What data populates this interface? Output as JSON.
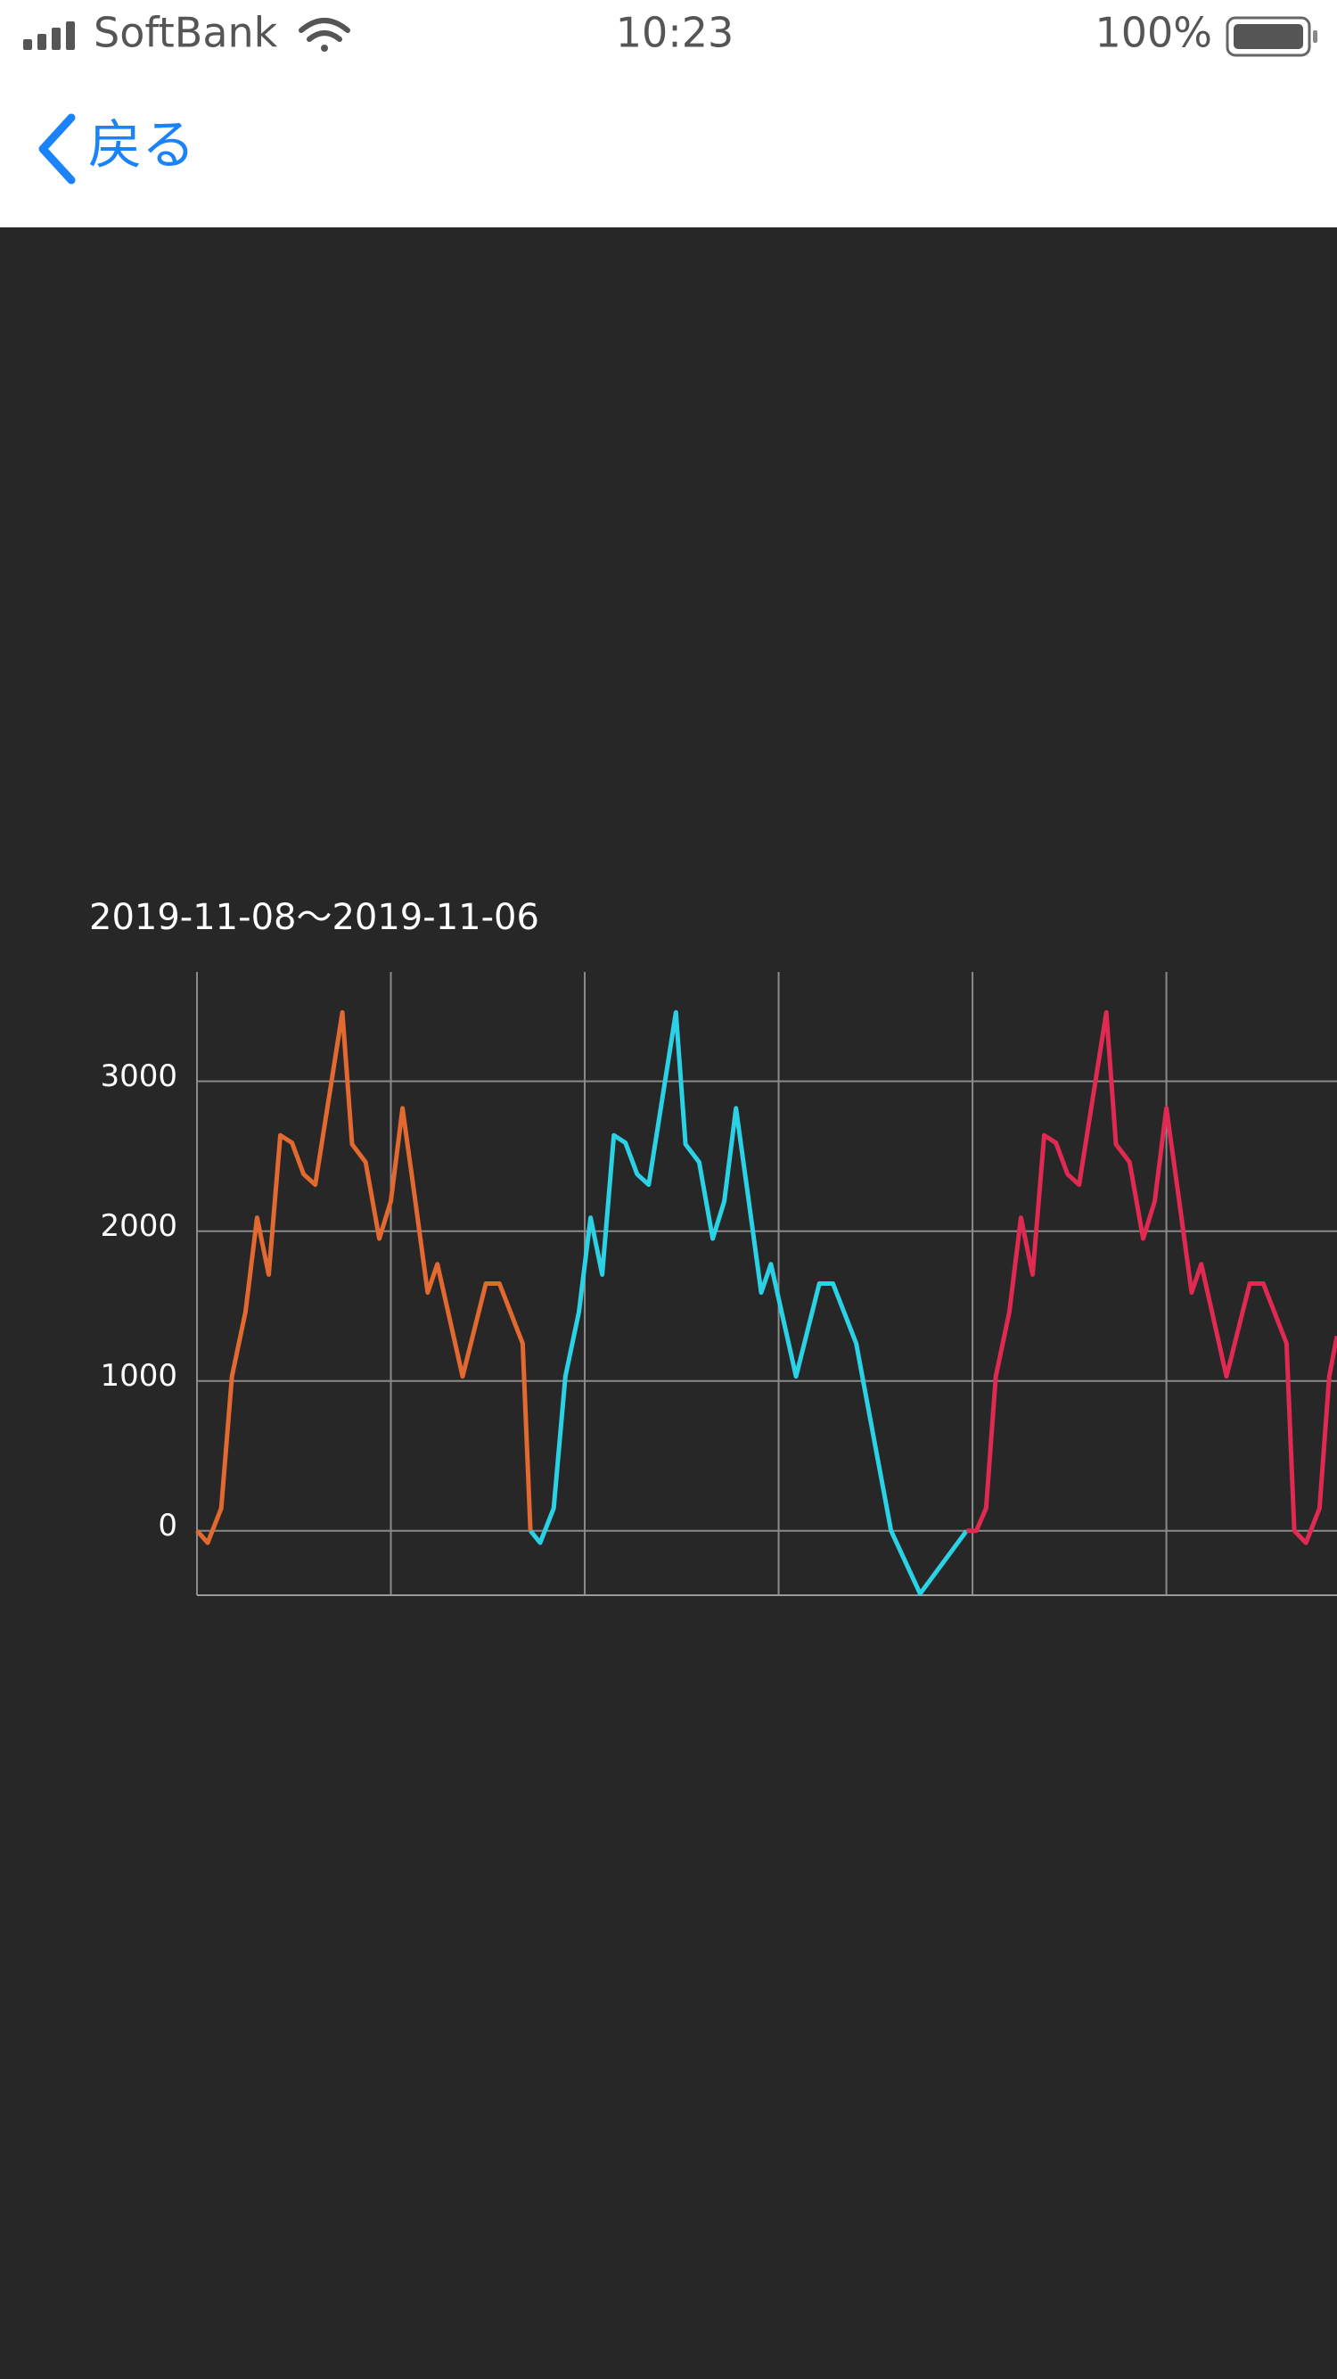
{
  "status_bar": {
    "carrier": "SoftBank",
    "time": "10:23",
    "battery": "100%"
  },
  "nav": {
    "back": "戻る"
  },
  "chart_data": {
    "type": "line",
    "title": "2019-11-08〜2019-11-06",
    "xlim": [
      0,
      5.88
    ],
    "xticks": [
      0,
      1,
      2,
      3,
      4,
      5
    ],
    "ylim": [
      -430,
      3730
    ],
    "yticks": [
      0,
      1000,
      2000,
      3000
    ],
    "grid": true,
    "series": [
      {
        "color": "#e2692f",
        "x": [
          0,
          0.055,
          0.125,
          0.18,
          0.25,
          0.31,
          0.37,
          0.43,
          0.49,
          0.55,
          0.61,
          0.75,
          0.8,
          0.87,
          0.94,
          1.0,
          1.06,
          1.12,
          1.19,
          1.24,
          1.37,
          1.49,
          1.56,
          1.68,
          1.72
        ],
        "values": [
          0,
          -80,
          150,
          1030,
          1460,
          2090,
          1710,
          2640,
          2590,
          2380,
          2310,
          3460,
          2580,
          2460,
          1950,
          2200,
          2820,
          2260,
          1590,
          1780,
          1030,
          1650,
          1650,
          1250,
          0
        ]
      },
      {
        "color": "#2bd2e6",
        "x": [
          1.72,
          1.77,
          1.84,
          1.9,
          1.97,
          2.03,
          2.09,
          2.15,
          2.21,
          2.27,
          2.33,
          2.47,
          2.52,
          2.59,
          2.66,
          2.72,
          2.78,
          2.84,
          2.91,
          2.96,
          3.09,
          3.21,
          3.28,
          3.4,
          3.58,
          3.73,
          3.97
        ],
        "values": [
          0,
          -80,
          150,
          1030,
          1460,
          2090,
          1710,
          2640,
          2590,
          2380,
          2310,
          3460,
          2580,
          2460,
          1950,
          2200,
          2820,
          2260,
          1590,
          1780,
          1030,
          1650,
          1650,
          1250,
          0,
          -420,
          0
        ]
      },
      {
        "color": "#e02a52",
        "x": [
          3.97,
          4.02,
          4.07,
          4.12,
          4.19,
          4.25,
          4.31,
          4.37,
          4.43,
          4.49,
          4.55,
          4.69,
          4.74,
          4.81,
          4.88,
          4.94,
          5.0,
          5.06,
          5.13,
          5.18,
          5.31,
          5.43,
          5.5,
          5.62,
          5.66,
          5.72,
          5.79,
          5.84,
          5.88
        ],
        "values": [
          0,
          0,
          150,
          1030,
          1460,
          2090,
          1710,
          2640,
          2590,
          2380,
          2310,
          3460,
          2580,
          2460,
          1950,
          2200,
          2820,
          2260,
          1590,
          1780,
          1030,
          1650,
          1650,
          1250,
          0,
          -80,
          150,
          1030,
          1300
        ]
      }
    ]
  }
}
